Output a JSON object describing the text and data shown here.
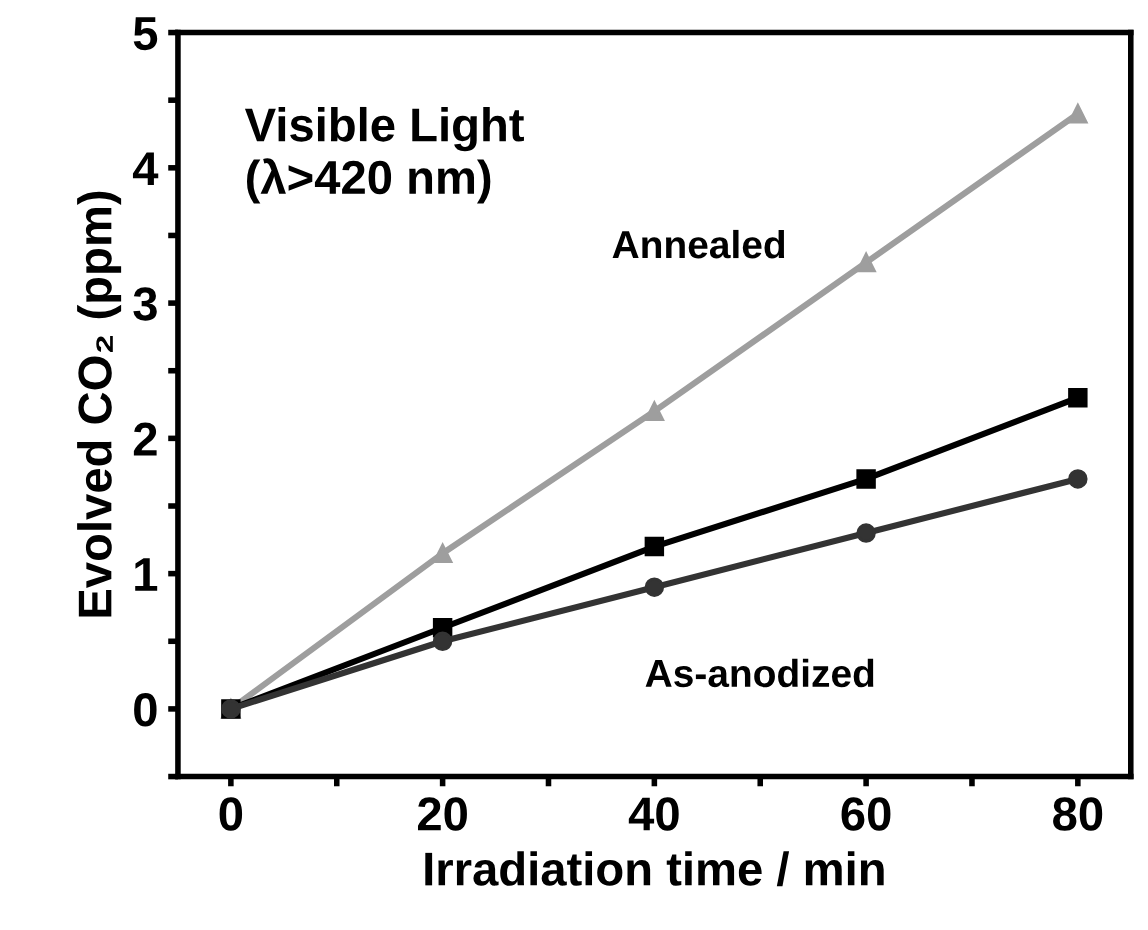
{
  "chart_data": {
    "type": "line",
    "xlabel": "Irradiation time / min",
    "ylabel": "Evolved CO₂ (ppm)",
    "x": [
      0,
      20,
      40,
      60,
      80
    ],
    "series": [
      {
        "name": "Annealed",
        "color": "#9e9e9e",
        "marker": "triangle",
        "values": [
          0,
          1.15,
          2.2,
          3.3,
          4.4
        ]
      },
      {
        "color": "#000000",
        "marker": "square",
        "values": [
          0,
          0.6,
          1.2,
          1.7,
          2.3
        ]
      },
      {
        "name": "As-anodized",
        "color": "#333333",
        "marker": "circle",
        "values": [
          0,
          0.5,
          0.9,
          1.3,
          1.7
        ]
      }
    ],
    "annotations": [
      "Visible Light\n(λ>420 nm)"
    ],
    "xlim": [
      -5,
      85
    ],
    "ylim": [
      -0.5,
      5
    ],
    "xticks": [
      0,
      {
        "value": 10,
        "label": null
      },
      20,
      {
        "value": 30,
        "label": null
      },
      40,
      {
        "value": 50,
        "label": null
      },
      60,
      {
        "value": 70,
        "label": null
      },
      80
    ],
    "yticks": [
      {
        "value": -0.5,
        "label": null
      },
      0,
      {
        "value": 0.5,
        "label": null
      },
      1,
      {
        "value": 1.5,
        "label": null
      },
      2,
      {
        "value": 2.5,
        "label": null
      },
      3,
      {
        "value": 3.5,
        "label": null
      },
      4,
      {
        "value": 4.5,
        "label": null
      },
      5
    ],
    "grid": false,
    "legend": false
  }
}
